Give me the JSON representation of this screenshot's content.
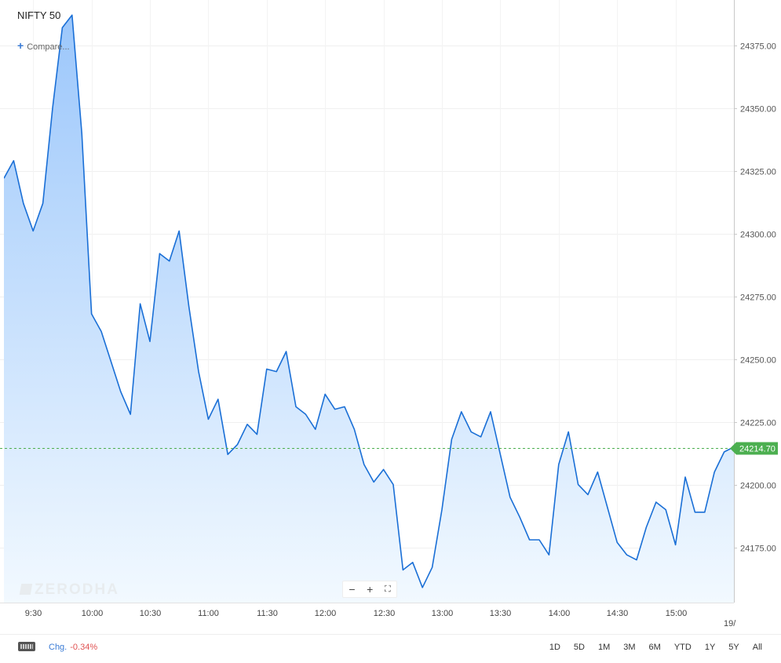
{
  "header": {
    "title": "NIFTY 50",
    "compare_label": "Compare..."
  },
  "watermark": "ZERODHA",
  "footer": {
    "change_label": "Chg.",
    "change_value": "-0.34%",
    "periods": [
      "1D",
      "5D",
      "1M",
      "3M",
      "6M",
      "YTD",
      "1Y",
      "5Y",
      "All"
    ]
  },
  "colors": {
    "line": "#1a6fd6",
    "fill_top": "#9cc7fb",
    "fill_bottom": "#f2f9ff",
    "last_price_bg": "#4caf50",
    "last_price_line": "#4caf50"
  },
  "chart_data": {
    "type": "area",
    "title": "NIFTY 50",
    "x_start": "09:15",
    "x_interval_minutes": 5,
    "x_ticks": [
      "9:30",
      "10:00",
      "10:30",
      "11:00",
      "11:30",
      "12:00",
      "12:30",
      "13:00",
      "13:30",
      "14:00",
      "14:30",
      "15:00"
    ],
    "x_tick_cutoff_label": "19/",
    "y_ticks": [
      "24175.00",
      "24200.00",
      "24225.00",
      "24250.00",
      "24275.00",
      "24300.00",
      "24325.00",
      "24350.00",
      "24375.00"
    ],
    "ylim": [
      24153,
      24393
    ],
    "values": [
      24322,
      24329,
      24312,
      24301,
      24312,
      24350,
      24382,
      24387,
      24340,
      24268,
      24261,
      24249,
      24237,
      24228,
      24272,
      24257,
      24292,
      24289,
      24301,
      24271,
      24245,
      24226,
      24234,
      24212,
      24216,
      24224,
      24220,
      24246,
      24245,
      24253,
      24231,
      24228,
      24222,
      24236,
      24230,
      24231,
      24222,
      24208,
      24201,
      24206,
      24200,
      24166,
      24169,
      24159,
      24167,
      24190,
      24218,
      24229,
      24221,
      24219,
      24229,
      24212,
      24195,
      24187,
      24178,
      24178,
      24172,
      24208,
      24221,
      24200,
      24196,
      24205,
      24191,
      24177,
      24172,
      24170,
      24183,
      24193,
      24190,
      24176,
      24203,
      24189,
      24189,
      24205,
      24213,
      24215
    ],
    "last_price": "24214.70",
    "last_price_value": 24214.7,
    "grid": true
  }
}
